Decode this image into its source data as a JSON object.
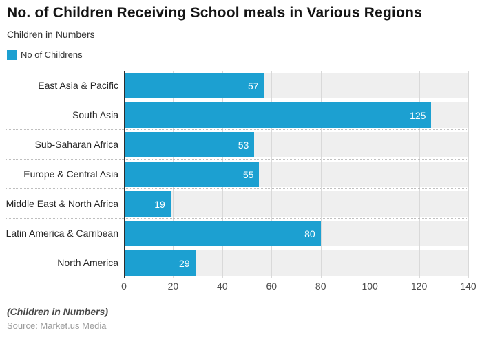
{
  "title": "No. of Children Receiving School meals in Various Regions",
  "subtitle": "Children in Numbers",
  "legend": {
    "label": "No of Childrens"
  },
  "footer": {
    "note": "(Children in Numbers)",
    "source": "Source: Market.us Media"
  },
  "colors": {
    "bar": "#1CA0D1",
    "row_band": "#EFEFEF",
    "gridline": "#D9D9D9",
    "divider": "#BFBFBF",
    "axis_line": "#2E2E2E",
    "value_label": "#FFFFFF"
  },
  "chart_data": {
    "type": "bar",
    "orientation": "horizontal",
    "title": "No. of Children Receiving School meals in Various Regions",
    "subtitle": "Children in Numbers",
    "series_name": "No of Childrens",
    "categories": [
      "East Asia & Pacific",
      "South Asia",
      "Sub-Saharan Africa",
      "Europe & Central Asia",
      "Middle East & North Africa",
      "Latin America & Carribean",
      "North America"
    ],
    "values": [
      57,
      125,
      53,
      55,
      19,
      80,
      29
    ],
    "xlim": [
      0,
      140
    ],
    "x_ticks": [
      0,
      20,
      40,
      60,
      80,
      100,
      120,
      140
    ],
    "grid": true,
    "legend_position": "top-left",
    "value_labels": "inside-end"
  }
}
